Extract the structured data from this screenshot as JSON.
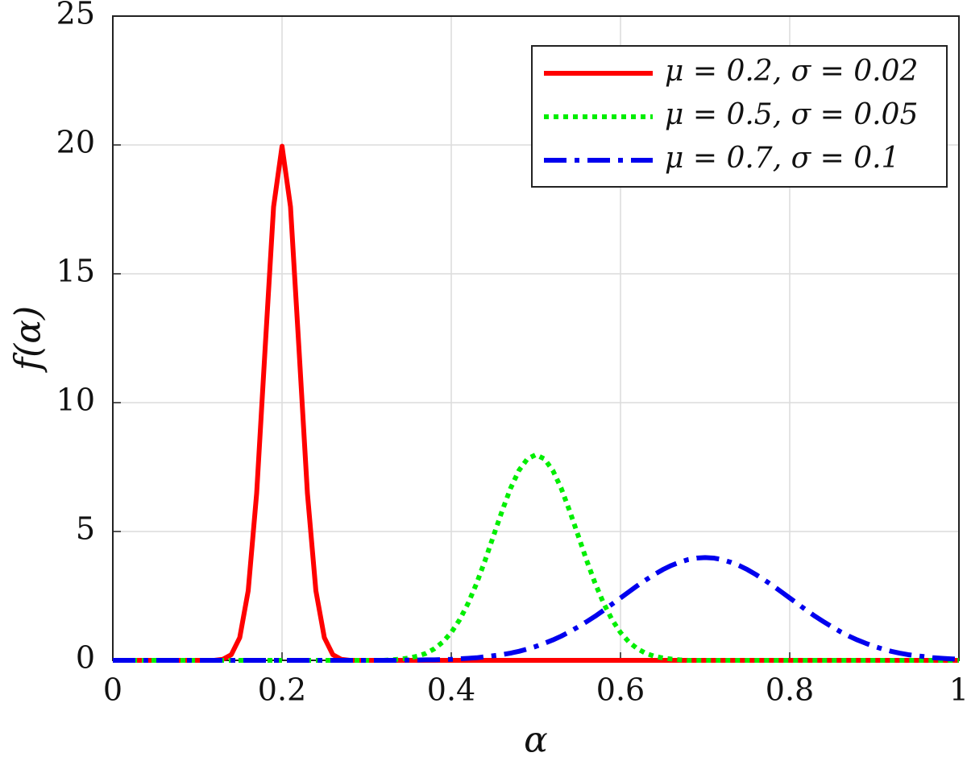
{
  "chart_data": {
    "type": "line",
    "x_label": "α",
    "y_label": "f(α)",
    "grid": true,
    "legend_position": "upper right",
    "xlim": [
      0,
      1
    ],
    "ylim": [
      0,
      25
    ],
    "xticks": [
      0,
      0.2,
      0.4,
      0.6,
      0.8,
      1
    ],
    "yticks": [
      0,
      5,
      10,
      15,
      20,
      25
    ],
    "x": [
      0,
      0.01,
      0.02,
      0.03,
      0.04,
      0.05,
      0.06,
      0.07,
      0.08,
      0.09,
      0.1,
      0.11,
      0.12,
      0.13,
      0.14,
      0.15,
      0.16,
      0.17,
      0.18,
      0.19,
      0.2,
      0.21,
      0.22,
      0.23,
      0.24,
      0.25,
      0.26,
      0.27,
      0.28,
      0.29,
      0.3,
      0.31,
      0.32,
      0.33,
      0.34,
      0.35,
      0.36,
      0.37,
      0.38,
      0.39,
      0.4,
      0.41,
      0.42,
      0.43,
      0.44,
      0.45,
      0.46,
      0.47,
      0.48,
      0.49,
      0.5,
      0.51,
      0.52,
      0.53,
      0.54,
      0.55,
      0.56,
      0.57,
      0.58,
      0.59,
      0.6,
      0.61,
      0.62,
      0.63,
      0.64,
      0.65,
      0.66,
      0.67,
      0.68,
      0.69,
      0.7,
      0.71,
      0.72,
      0.73,
      0.74,
      0.75,
      0.76,
      0.77,
      0.78,
      0.79,
      0.8,
      0.81,
      0.82,
      0.83,
      0.84,
      0.85,
      0.86,
      0.87,
      0.88,
      0.89,
      0.9,
      0.91,
      0.92,
      0.93,
      0.94,
      0.95,
      0.96,
      0.97,
      0.98,
      0.99,
      1
    ],
    "series": [
      {
        "name": "μ = 0.2, σ = 0.02",
        "color": "#ff0000",
        "linestyle": "solid",
        "values": [
          0,
          0,
          0,
          0,
          0,
          0,
          0,
          0,
          0,
          0,
          0,
          0,
          0,
          0.04,
          0.22,
          0.88,
          2.7,
          6.48,
          12.1,
          17.6,
          19.95,
          17.6,
          12.1,
          6.48,
          2.7,
          0.88,
          0.22,
          0.04,
          0,
          0,
          0,
          0,
          0,
          0,
          0,
          0,
          0,
          0,
          0,
          0,
          0,
          0,
          0,
          0,
          0,
          0,
          0,
          0,
          0,
          0,
          0,
          0,
          0,
          0,
          0,
          0,
          0,
          0,
          0,
          0,
          0,
          0,
          0,
          0,
          0,
          0,
          0,
          0,
          0,
          0,
          0,
          0,
          0,
          0,
          0,
          0,
          0,
          0,
          0,
          0,
          0,
          0,
          0,
          0,
          0,
          0,
          0,
          0,
          0,
          0,
          0,
          0,
          0,
          0,
          0,
          0,
          0,
          0,
          0,
          0,
          0
        ]
      },
      {
        "name": "μ = 0.5, σ = 0.05",
        "color": "#00ee00",
        "linestyle": "dotted",
        "values": [
          0,
          0,
          0,
          0,
          0,
          0,
          0,
          0,
          0,
          0,
          0,
          0,
          0,
          0,
          0,
          0,
          0,
          0,
          0,
          0,
          0,
          0,
          0,
          0,
          0,
          0,
          0,
          0,
          0,
          0,
          0,
          0,
          0,
          0.02,
          0.05,
          0.09,
          0.16,
          0.27,
          0.45,
          0.71,
          1.08,
          1.58,
          2.22,
          2.99,
          3.88,
          4.84,
          5.79,
          6.67,
          7.37,
          7.82,
          7.98,
          7.82,
          7.37,
          6.67,
          5.79,
          4.84,
          3.88,
          2.99,
          2.22,
          1.58,
          1.08,
          0.71,
          0.45,
          0.27,
          0.16,
          0.09,
          0.05,
          0.02,
          0,
          0,
          0,
          0,
          0,
          0,
          0,
          0,
          0,
          0,
          0,
          0,
          0,
          0,
          0,
          0,
          0,
          0,
          0,
          0,
          0,
          0,
          0,
          0,
          0,
          0,
          0,
          0,
          0,
          0,
          0,
          0,
          0
        ]
      },
      {
        "name": "μ = 0.7, σ = 0.1",
        "color": "#0000ee",
        "linestyle": "dashdot",
        "values": [
          0,
          0,
          0,
          0,
          0,
          0,
          0,
          0,
          0,
          0,
          0,
          0,
          0,
          0,
          0,
          0,
          0,
          0,
          0,
          0,
          0,
          0,
          0,
          0,
          0,
          0,
          0,
          0,
          0,
          0,
          0,
          0,
          0,
          0,
          0,
          0.01,
          0.01,
          0.02,
          0.02,
          0.03,
          0.04,
          0.06,
          0.08,
          0.1,
          0.14,
          0.18,
          0.22,
          0.28,
          0.35,
          0.44,
          0.54,
          0.66,
          0.79,
          0.94,
          1.11,
          1.3,
          1.5,
          1.71,
          1.94,
          2.18,
          2.42,
          2.66,
          2.9,
          3.12,
          3.33,
          3.52,
          3.68,
          3.81,
          3.91,
          3.97,
          3.99,
          3.97,
          3.91,
          3.81,
          3.68,
          3.52,
          3.33,
          3.12,
          2.9,
          2.66,
          2.42,
          2.18,
          1.94,
          1.71,
          1.5,
          1.3,
          1.11,
          0.94,
          0.79,
          0.66,
          0.54,
          0.44,
          0.35,
          0.28,
          0.22,
          0.18,
          0.14,
          0.1,
          0.08,
          0.06,
          0.04
        ]
      }
    ]
  }
}
